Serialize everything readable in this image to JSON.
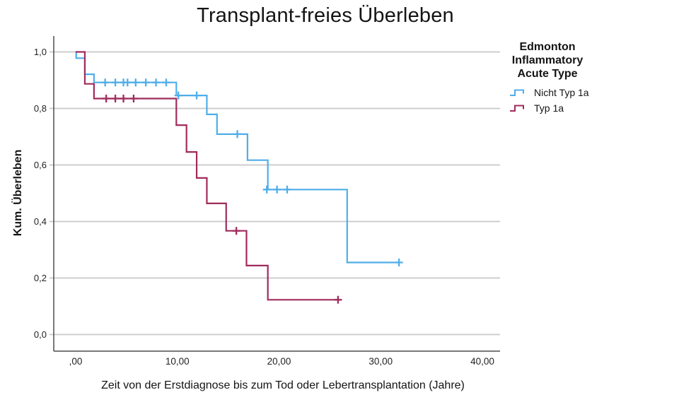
{
  "chart_data": {
    "type": "line",
    "subtype": "kaplan-meier-step",
    "title": "Transplant-freies Überleben",
    "xlabel": "Zeit von der Erstdiagnose bis zum Tod oder Lebertransplantation (Jahre)",
    "ylabel": "Kum. Überleben",
    "grid": "horizontal",
    "xticks": {
      "values": [
        0,
        10,
        20,
        30,
        40
      ],
      "labels": [
        ",00",
        "10,00",
        "20,00",
        "30,00",
        "40,00"
      ]
    },
    "yticks": {
      "values": [
        0,
        0.2,
        0.4,
        0.6,
        0.8,
        1.0
      ],
      "labels": [
        "0,0",
        "0,2",
        "0,4",
        "0,6",
        "0,8",
        "1,0"
      ]
    },
    "xlim": [
      -2.2,
      41.7
    ],
    "ylim": [
      -0.06,
      1.06
    ],
    "colors": {
      "grid": "#c9c9c9",
      "axis": "#4d4d4d",
      "text": "#222222"
    },
    "legend": {
      "title": "Edmonton Inflammatory Acute Type",
      "position": "right"
    },
    "series": [
      {
        "name": "Nicht Typ 1a",
        "color": "#4FAEE9",
        "steps": [
          [
            0,
            1.0
          ],
          [
            0.05,
            0.978
          ],
          [
            0.9,
            0.921
          ],
          [
            1.8,
            0.892
          ],
          [
            9.9,
            0.846
          ],
          [
            12.9,
            0.779
          ],
          [
            13.9,
            0.709
          ],
          [
            16.9,
            0.617
          ],
          [
            18.9,
            0.513
          ],
          [
            26.7,
            0.255
          ]
        ],
        "end_time": 31.8,
        "censors": [
          [
            2.9,
            0.892
          ],
          [
            3.9,
            0.892
          ],
          [
            4.7,
            0.892
          ],
          [
            5.1,
            0.892
          ],
          [
            5.9,
            0.892
          ],
          [
            6.9,
            0.892
          ],
          [
            7.9,
            0.892
          ],
          [
            8.9,
            0.892
          ],
          [
            10.1,
            0.846
          ],
          [
            11.9,
            0.846
          ],
          [
            15.9,
            0.709
          ],
          [
            18.8,
            0.513
          ],
          [
            19.8,
            0.513
          ],
          [
            20.8,
            0.513
          ],
          [
            31.8,
            0.255
          ]
        ]
      },
      {
        "name": "Typ 1a",
        "color": "#A02B5C",
        "steps": [
          [
            0,
            1.0
          ],
          [
            0.9,
            0.887
          ],
          [
            1.8,
            0.835
          ],
          [
            9.9,
            0.741
          ],
          [
            10.9,
            0.646
          ],
          [
            11.9,
            0.554
          ],
          [
            12.9,
            0.464
          ],
          [
            14.8,
            0.367
          ],
          [
            16.8,
            0.244
          ],
          [
            18.9,
            0.123
          ]
        ],
        "end_time": 25.8,
        "censors": [
          [
            3.0,
            0.835
          ],
          [
            3.9,
            0.835
          ],
          [
            4.7,
            0.835
          ],
          [
            5.7,
            0.835
          ],
          [
            15.8,
            0.367
          ],
          [
            25.8,
            0.123
          ]
        ]
      }
    ]
  }
}
